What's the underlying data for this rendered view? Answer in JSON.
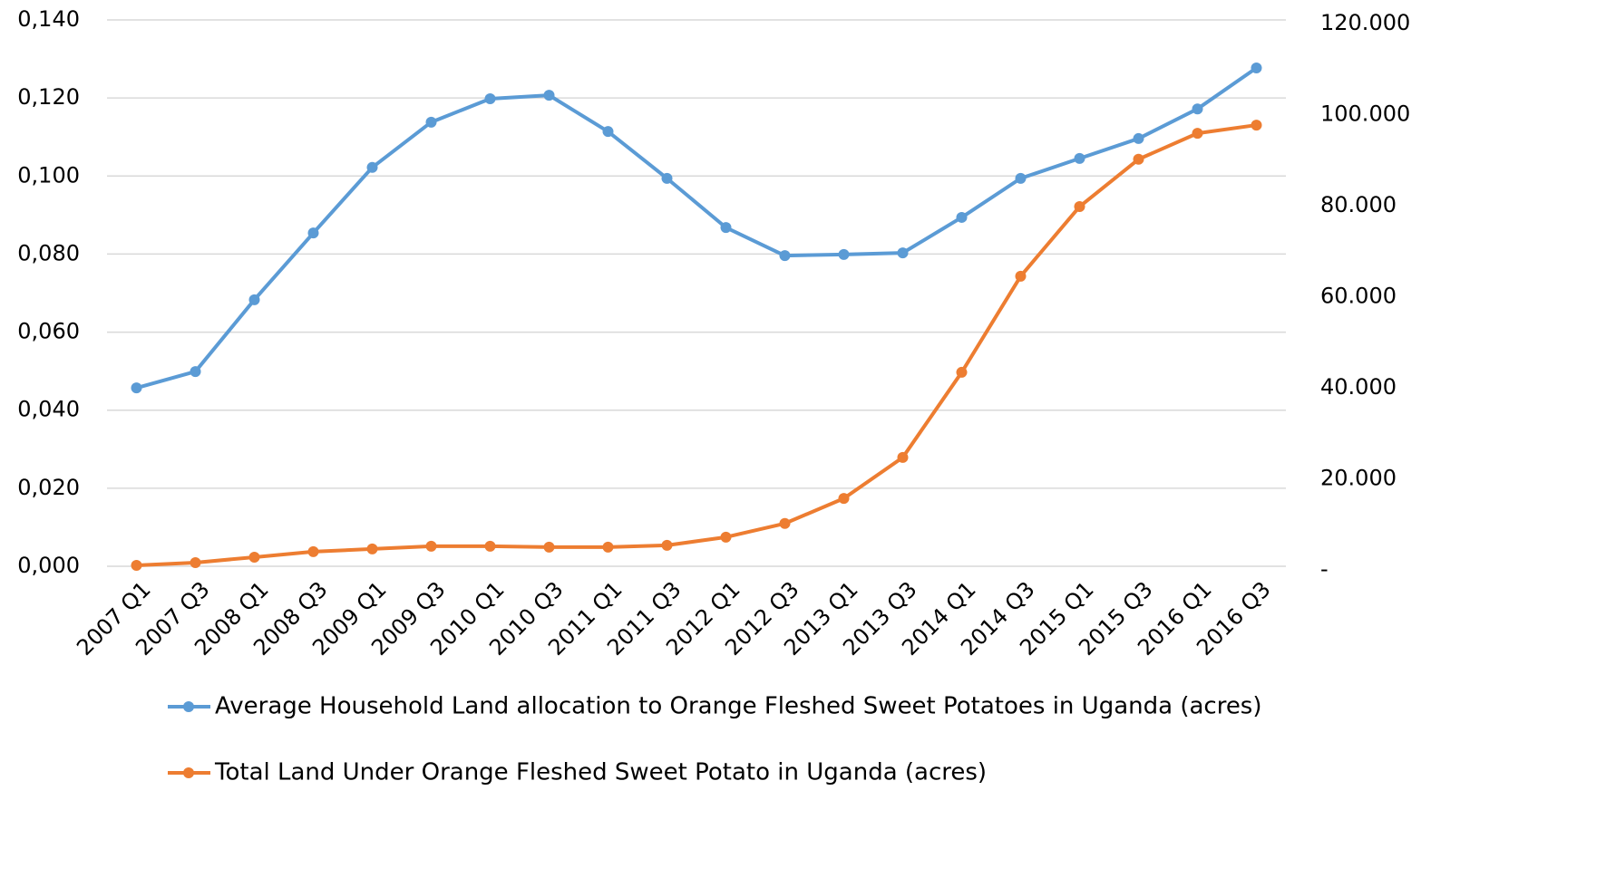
{
  "chart_data": {
    "type": "line",
    "categories": [
      "2007 Q1",
      "2007 Q3",
      "2008 Q1",
      "2008 Q3",
      "2009 Q1",
      "2009 Q3",
      "2010 Q1",
      "2010 Q3",
      "2011 Q1",
      "2011 Q3",
      "2012 Q1",
      "2012 Q3",
      "2013 Q1",
      "2013 Q3",
      "2014 Q1",
      "2014 Q3",
      "2015 Q1",
      "2015 Q3",
      "2016 Q1",
      "2016 Q3"
    ],
    "series": [
      {
        "name": "Average Household Land allocation to Orange Fleshed Sweet Potatoes in Uganda (acres)",
        "color": "#5b9bd5",
        "values": [
          0.0457,
          0.0499,
          0.0683,
          0.0854,
          0.1022,
          0.1138,
          0.1198,
          0.1207,
          0.1114,
          0.0994,
          0.0868,
          0.0796,
          0.0799,
          0.0803,
          0.0894,
          0.0994,
          0.1045,
          0.1096,
          0.1172,
          0.1277
        ]
      },
      {
        "name": "Total Land Under Orange Fleshed Sweet Potato in Uganda (acres)",
        "color": "#ed7d31",
        "axis": "y2",
        "values": [
          200,
          800,
          2000,
          3200,
          3800,
          4400,
          4400,
          4200,
          4200,
          4600,
          6400,
          9400,
          14900,
          23900,
          42600,
          63700,
          79000,
          89400,
          95100,
          96900
        ]
      }
    ],
    "ylim": [
      0,
      0.14
    ],
    "yticks": [
      {
        "value": 0,
        "label": "0,000"
      },
      {
        "value": 0.02,
        "label": "0,020"
      },
      {
        "value": 0.04,
        "label": "0,040"
      },
      {
        "value": 0.06,
        "label": "0,060"
      },
      {
        "value": 0.08,
        "label": "0,080"
      },
      {
        "value": 0.1,
        "label": "0,100"
      },
      {
        "value": 0.12,
        "label": "0,120"
      },
      {
        "value": 0.14,
        "label": "0,140"
      }
    ],
    "y2lim": [
      0,
      120000
    ],
    "y2ticks": [
      {
        "value": 0,
        "label": "-"
      },
      {
        "value": 20000,
        "label": "20.000"
      },
      {
        "value": 40000,
        "label": "40.000"
      },
      {
        "value": 60000,
        "label": "60.000"
      },
      {
        "value": 80000,
        "label": "80.000"
      },
      {
        "value": 100000,
        "label": "100.000"
      },
      {
        "value": 120000,
        "label": "120.000"
      }
    ],
    "grid": true,
    "legend": "bottom"
  }
}
